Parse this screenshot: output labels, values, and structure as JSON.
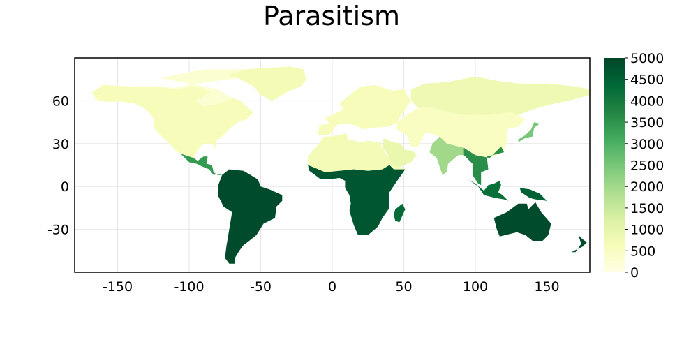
{
  "chart_data": {
    "type": "heatmap",
    "title": "Parasitism",
    "xlabel": "",
    "ylabel": "",
    "xlim": [
      -180,
      180
    ],
    "ylim": [
      -60,
      90
    ],
    "x_ticks": [
      -150,
      -100,
      -50,
      0,
      50,
      100,
      150
    ],
    "x_tick_labels": [
      "-150",
      "-100",
      "-50",
      "0",
      "50",
      "100",
      "150"
    ],
    "y_ticks": [
      -30,
      0,
      30,
      60
    ],
    "y_tick_labels": [
      "-30",
      "0",
      "30",
      "60"
    ],
    "grid": true,
    "colorbar": {
      "min": 0,
      "max": 5000,
      "ticks": [
        0,
        500,
        1000,
        1500,
        2000,
        2500,
        3000,
        3500,
        4000,
        4500,
        5000
      ],
      "tick_labels": [
        "0",
        "500",
        "1000",
        "1500",
        "2000",
        "2500",
        "3000",
        "3500",
        "4000",
        "4500",
        "5000"
      ],
      "colormap": [
        "#ffffe5",
        "#f7fcb9",
        "#d9f0a3",
        "#addd8e",
        "#78c679",
        "#41ab5d",
        "#238443",
        "#006837",
        "#004529"
      ]
    },
    "regions": [
      {
        "name": "North America north",
        "value": 300
      },
      {
        "name": "North America",
        "value": 600
      },
      {
        "name": "Greenland",
        "value": 700
      },
      {
        "name": "Central America",
        "value": 3400
      },
      {
        "name": "South America",
        "value": 4900
      },
      {
        "name": "Europe",
        "value": 600
      },
      {
        "name": "North Africa",
        "value": 700
      },
      {
        "name": "Sub-Saharan Africa",
        "value": 4700
      },
      {
        "name": "Madagascar",
        "value": 4300
      },
      {
        "name": "Arabia",
        "value": 900
      },
      {
        "name": "Siberia",
        "value": 800
      },
      {
        "name": "Central Asia",
        "value": 500
      },
      {
        "name": "India",
        "value": 2000
      },
      {
        "name": "Southeast Asia",
        "value": 3600
      },
      {
        "name": "Japan",
        "value": 2500
      },
      {
        "name": "Indonesia",
        "value": 4200
      },
      {
        "name": "New Guinea",
        "value": 4500
      },
      {
        "name": "Australia",
        "value": 4900
      },
      {
        "name": "New Zealand",
        "value": 4900
      }
    ]
  }
}
